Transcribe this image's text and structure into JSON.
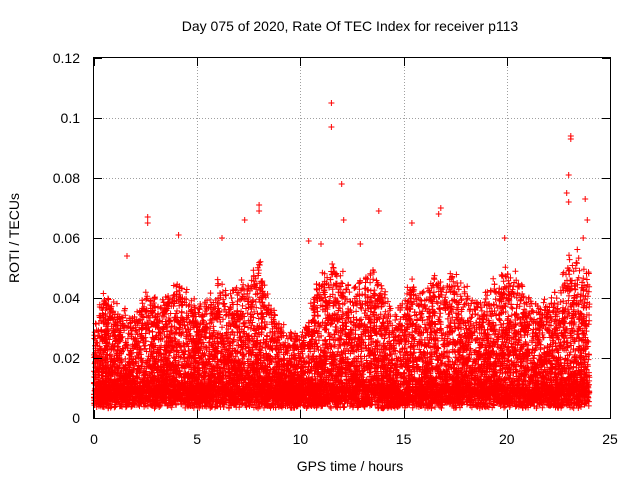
{
  "chart_data": {
    "type": "scatter",
    "title": "Day 075 of 2020, Rate Of TEC Index for receiver p113",
    "xlabel": "GPS time / hours",
    "ylabel": "ROTI / TECUs",
    "xlim": [
      0,
      25
    ],
    "ylim": [
      0,
      0.12
    ],
    "x_ticks": [
      "0",
      "5",
      "10",
      "15",
      "20",
      "25"
    ],
    "y_ticks": [
      "0",
      "0.02",
      "0.04",
      "0.06",
      "0.08",
      "0.1",
      "0.12"
    ],
    "x_tick_values": [
      0,
      5,
      10,
      15,
      20,
      25
    ],
    "y_tick_values": [
      0,
      0.02,
      0.04,
      0.06,
      0.08,
      0.1,
      0.12
    ],
    "grid": true,
    "marker": "+",
    "series_color": "#ff0000",
    "x_data_range": [
      0,
      24
    ],
    "outliers": [
      [
        11.5,
        0.105
      ],
      [
        11.5,
        0.097
      ],
      [
        23.1,
        0.094
      ],
      [
        23.1,
        0.093
      ],
      [
        12.0,
        0.078
      ],
      [
        23.0,
        0.081
      ],
      [
        22.9,
        0.075
      ],
      [
        23.0,
        0.072
      ],
      [
        23.8,
        0.073
      ],
      [
        8.0,
        0.071
      ],
      [
        8.0,
        0.069
      ],
      [
        13.8,
        0.069
      ],
      [
        16.8,
        0.07
      ],
      [
        16.7,
        0.068
      ],
      [
        2.6,
        0.067
      ],
      [
        2.6,
        0.065
      ],
      [
        7.3,
        0.066
      ],
      [
        12.1,
        0.066
      ],
      [
        15.4,
        0.065
      ],
      [
        23.9,
        0.066
      ],
      [
        4.1,
        0.061
      ],
      [
        6.2,
        0.06
      ],
      [
        10.4,
        0.059
      ],
      [
        12.9,
        0.058
      ],
      [
        19.9,
        0.06
      ],
      [
        23.7,
        0.06
      ],
      [
        1.6,
        0.054
      ],
      [
        11.0,
        0.058
      ]
    ],
    "envelope": [
      [
        0.0,
        0.028
      ],
      [
        0.5,
        0.04
      ],
      [
        1.0,
        0.035
      ],
      [
        1.5,
        0.033
      ],
      [
        2.0,
        0.03
      ],
      [
        2.5,
        0.042
      ],
      [
        3.0,
        0.036
      ],
      [
        3.5,
        0.038
      ],
      [
        4.0,
        0.043
      ],
      [
        4.5,
        0.04
      ],
      [
        5.0,
        0.035
      ],
      [
        5.5,
        0.036
      ],
      [
        6.0,
        0.042
      ],
      [
        6.5,
        0.039
      ],
      [
        7.0,
        0.041
      ],
      [
        7.5,
        0.044
      ],
      [
        8.0,
        0.05
      ],
      [
        8.5,
        0.038
      ],
      [
        9.0,
        0.028
      ],
      [
        9.5,
        0.026
      ],
      [
        10.0,
        0.024
      ],
      [
        10.5,
        0.038
      ],
      [
        11.0,
        0.045
      ],
      [
        11.5,
        0.048
      ],
      [
        12.0,
        0.046
      ],
      [
        12.5,
        0.042
      ],
      [
        13.0,
        0.044
      ],
      [
        13.5,
        0.048
      ],
      [
        14.0,
        0.042
      ],
      [
        14.5,
        0.034
      ],
      [
        15.0,
        0.038
      ],
      [
        15.5,
        0.043
      ],
      [
        16.0,
        0.041
      ],
      [
        16.5,
        0.045
      ],
      [
        17.0,
        0.046
      ],
      [
        17.5,
        0.044
      ],
      [
        18.0,
        0.042
      ],
      [
        18.5,
        0.038
      ],
      [
        19.0,
        0.04
      ],
      [
        19.5,
        0.043
      ],
      [
        20.0,
        0.046
      ],
      [
        20.5,
        0.044
      ],
      [
        21.0,
        0.04
      ],
      [
        21.5,
        0.035
      ],
      [
        22.0,
        0.038
      ],
      [
        22.5,
        0.04
      ],
      [
        23.0,
        0.05
      ],
      [
        23.5,
        0.052
      ],
      [
        24.0,
        0.045
      ]
    ],
    "baseline": 0.008,
    "points_per_hour": 520
  }
}
